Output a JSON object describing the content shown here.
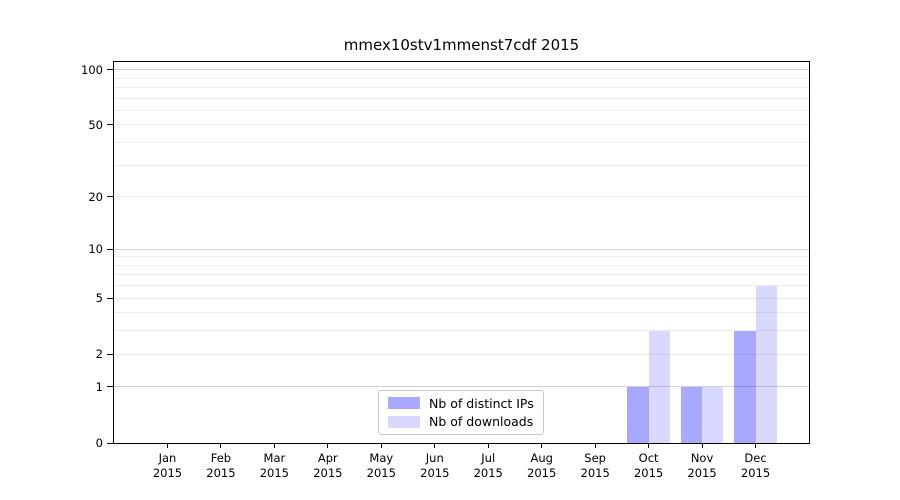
{
  "chart_data": {
    "type": "bar",
    "title": "mmex10stv1mmenst7cdf 2015",
    "categories": [
      "Jan",
      "Feb",
      "Mar",
      "Apr",
      "May",
      "Jun",
      "Jul",
      "Aug",
      "Sep",
      "Oct",
      "Nov",
      "Dec"
    ],
    "category_year": "2015",
    "series": [
      {
        "name": "Nb of distinct IPs",
        "color": "rgba(0,0,255,0.34)",
        "values": [
          0,
          0,
          0,
          0,
          0,
          0,
          0,
          0,
          0,
          1,
          1,
          3
        ]
      },
      {
        "name": "Nb of downloads",
        "color": "rgba(0,0,255,0.15)",
        "values": [
          0,
          0,
          0,
          0,
          0,
          0,
          0,
          0,
          0,
          3,
          1,
          6
        ]
      }
    ],
    "xlabel": "",
    "ylabel": "",
    "yscale": "log1p",
    "ylim": [
      0,
      110
    ],
    "yticks": [
      0,
      1,
      2,
      5,
      10,
      20,
      50,
      100
    ],
    "ytick_labels": [
      "0",
      "1",
      "2",
      "5",
      "10",
      "20",
      "50",
      "100"
    ],
    "grid": "y",
    "grid_major": [
      1,
      10,
      100
    ],
    "grid_minor": [
      2,
      3,
      4,
      5,
      6,
      7,
      8,
      9,
      20,
      30,
      40,
      50,
      60,
      70,
      80,
      90
    ],
    "legend_position": "lower center",
    "bar_group_width_ratio": 0.8
  }
}
